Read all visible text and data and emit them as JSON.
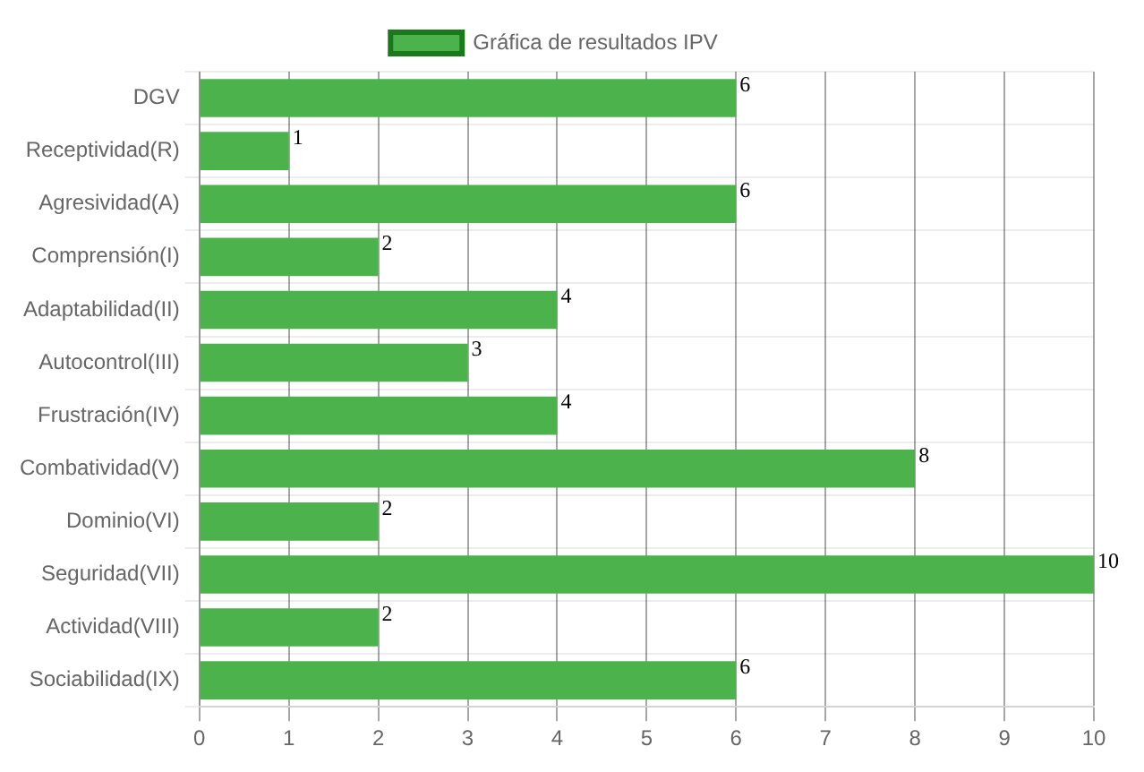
{
  "chart_data": {
    "type": "bar",
    "orientation": "horizontal",
    "categories": [
      "DGV",
      "Receptividad(R)",
      "Agresividad(A)",
      "Comprensión(I)",
      "Adaptabilidad(II)",
      "Autocontrol(III)",
      "Frustración(IV)",
      "Combatividad(V)",
      "Dominio(VI)",
      "Seguridad(VII)",
      "Actividad(VIII)",
      "Sociabilidad(IX)"
    ],
    "series": [
      {
        "name": "Gráfica de resultados IPV",
        "color": "#4cb34c",
        "values": [
          6,
          1,
          6,
          2,
          4,
          3,
          4,
          8,
          2,
          10,
          2,
          6
        ]
      }
    ],
    "xlim": [
      0,
      10
    ],
    "xticks": [
      0,
      1,
      2,
      3,
      4,
      5,
      6,
      7,
      8,
      9,
      10
    ],
    "grid": true,
    "legend": "top",
    "data_labels": true
  }
}
